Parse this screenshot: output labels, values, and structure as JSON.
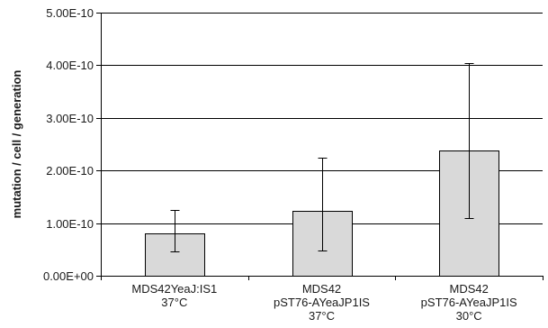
{
  "chart_data": {
    "type": "bar",
    "title": "",
    "xlabel": "",
    "ylabel": "mutation / cell / generation",
    "ylim": [
      0,
      5e-10
    ],
    "yticks": [
      0,
      1e-10,
      2e-10,
      3e-10,
      4e-10,
      5e-10
    ],
    "ytick_labels": [
      "0.00E+00",
      "1.00E-10",
      "2.00E-10",
      "3.00E-10",
      "4.00E-10",
      "5.00E-10"
    ],
    "grid": "horizontal",
    "categories": [
      [
        "MDS42YeaJ:IS1",
        "37°C"
      ],
      [
        "MDS42",
        "pST76-AYeaJP1IS",
        "37°C"
      ],
      [
        "MDS42",
        "pST76-AYeaJP1IS",
        "30°C"
      ]
    ],
    "values": [
      8.1e-11,
      1.24e-10,
      2.38e-10
    ],
    "error_low": [
      4.6e-11,
      4.8e-11,
      1.09e-10
    ],
    "error_high": [
      1.25e-10,
      2.24e-10,
      4.04e-10
    ],
    "colors": {
      "bar_fill": "#d9d9d9",
      "bar_stroke": "#000000",
      "grid": "#000000"
    }
  }
}
